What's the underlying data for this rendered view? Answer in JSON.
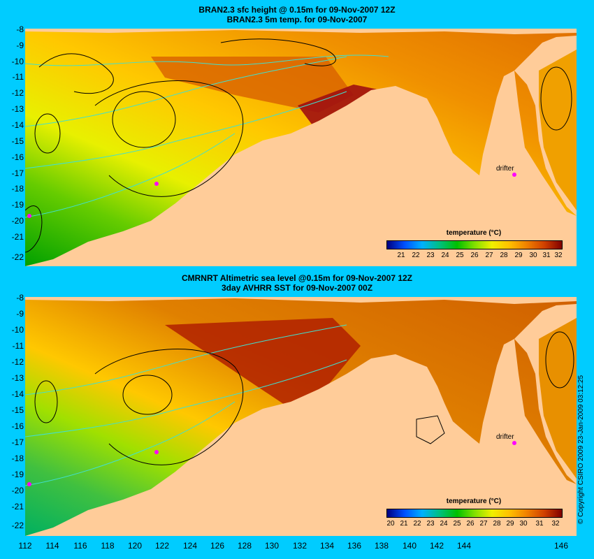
{
  "top_panel": {
    "title_line1": "BRAN2.3 sfc height @ 0.15m for 09-Nov-2007 12Z",
    "title_line2": "BRAN2.3 5m temp. for 09-Nov-2007",
    "drifter_label": "drifter"
  },
  "bottom_panel": {
    "title_line1": "CMRNRT Altimetric sea level  @0.15m  for 09-Nov-2007 12Z",
    "title_line2": "3day AVHRR SST for 09-Nov-2007 00Z",
    "drifter_label": "drifter"
  },
  "lat_ticks": [
    "-8",
    "-9",
    "-10",
    "-11",
    "-12",
    "-13",
    "-14",
    "-15",
    "-16",
    "-17",
    "-18",
    "-19",
    "-20",
    "-21",
    "-22"
  ],
  "lon_ticks": [
    "112",
    "114",
    "116",
    "118",
    "120",
    "122",
    "124",
    "126",
    "128",
    "130",
    "132",
    "134",
    "136",
    "138",
    "140",
    "142",
    "144",
    "146"
  ],
  "legend_top": {
    "title": "temperature (°C)",
    "labels": [
      "21",
      "22",
      "23",
      "24",
      "25",
      "26",
      "27",
      "28",
      "29",
      "30",
      "31",
      "32"
    ]
  },
  "legend_bottom": {
    "title": "temperature (°C)",
    "labels": [
      "20",
      "21",
      "22",
      "23",
      "24",
      "25",
      "26",
      "27",
      "28",
      "29",
      "30",
      "31",
      "32"
    ]
  },
  "copyright": "© Copyright CSIRO 2009   23-Jan-2009 03:12:25",
  "colors": {
    "background": "#00CCFF",
    "land": "#FFCC99",
    "cold": "#000080",
    "warm": "#800000",
    "contour_bathy": "#40E0D0",
    "contour_ssh": "#000000",
    "drifter_marker": "#FF00FF"
  }
}
